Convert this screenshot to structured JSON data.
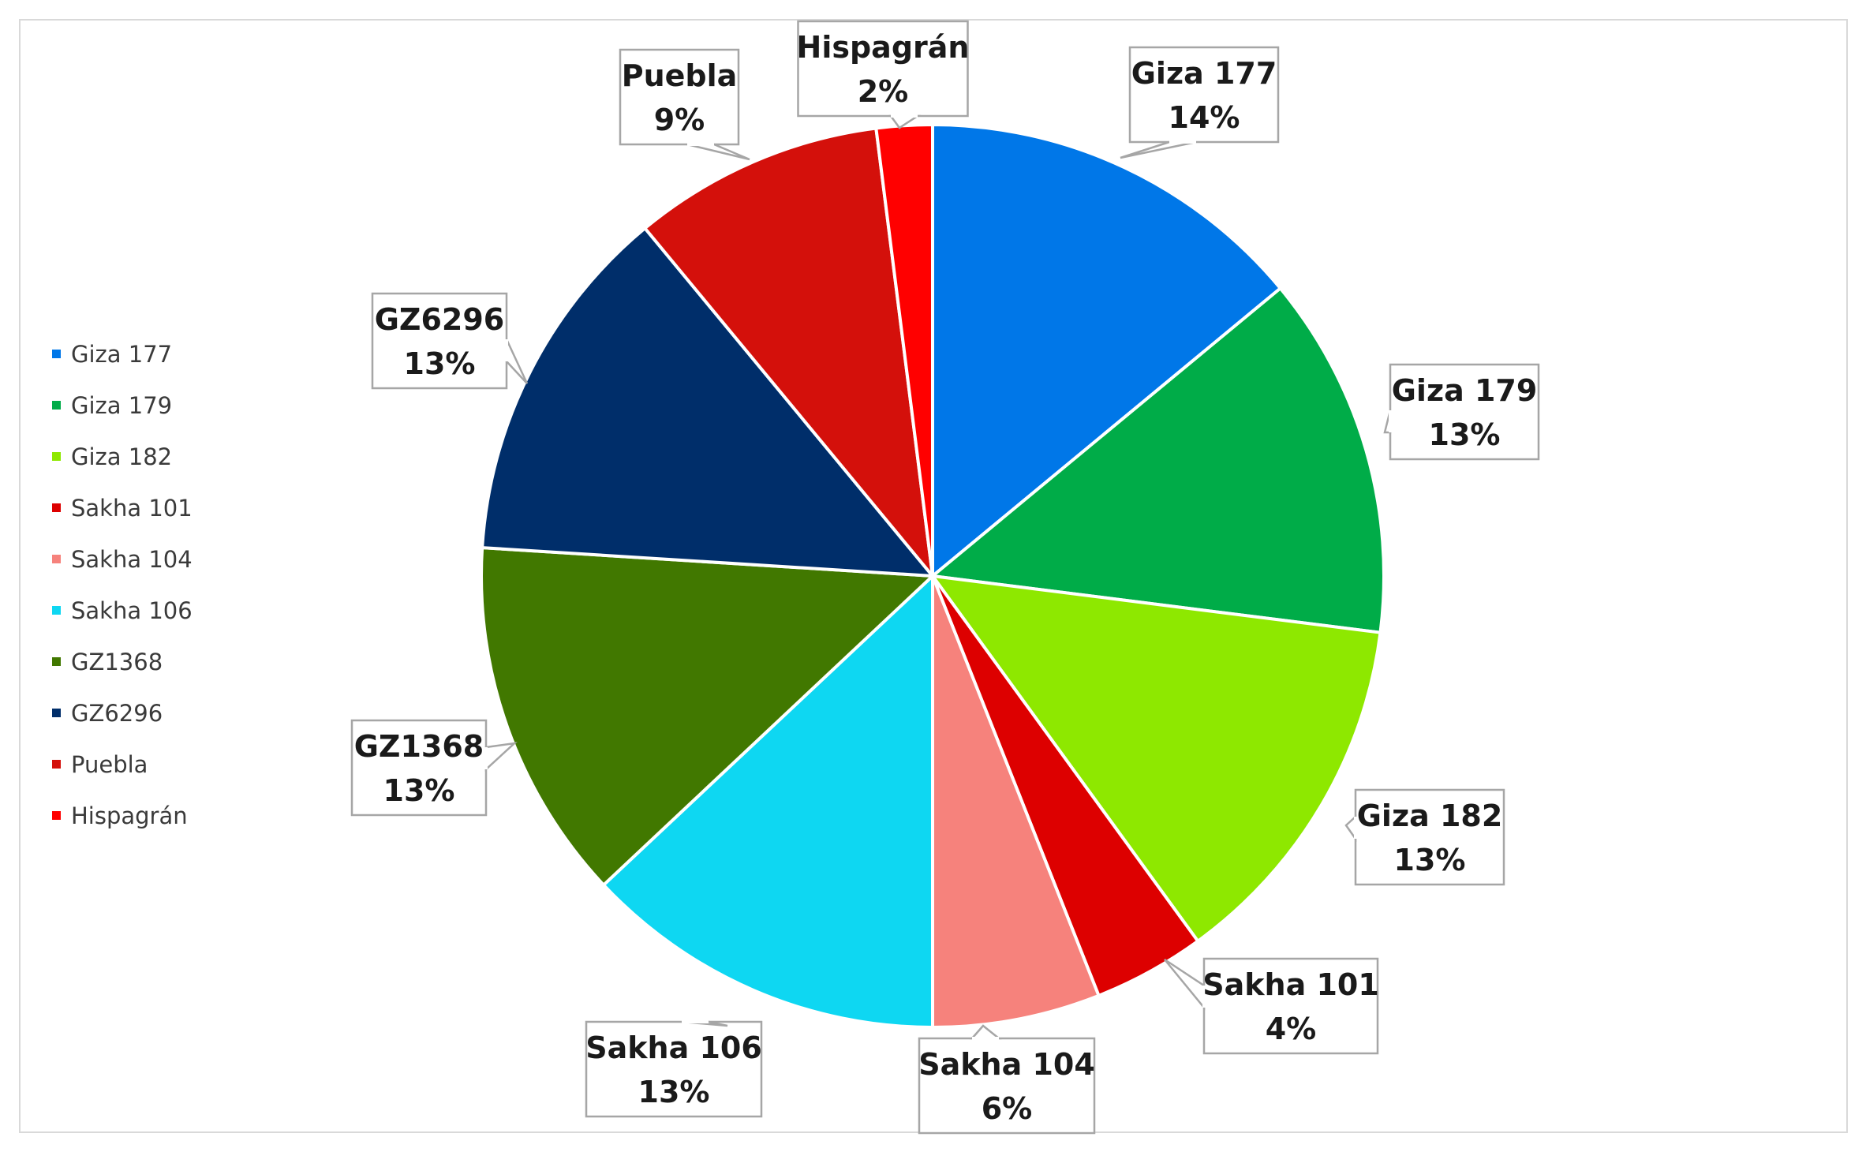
{
  "chart_data": {
    "type": "pie",
    "title": "",
    "slices": [
      {
        "name": "Giza 177",
        "value": 14,
        "label": "14%",
        "color": "#0077e8"
      },
      {
        "name": "Giza 179",
        "value": 13,
        "label": "13%",
        "color": "#00ac48"
      },
      {
        "name": "Giza 182",
        "value": 13,
        "label": "13%",
        "color": "#8ee800"
      },
      {
        "name": "Sakha 101",
        "value": 4,
        "label": "4%",
        "color": "#dd0000"
      },
      {
        "name": "Sakha 104",
        "value": 6,
        "label": "6%",
        "color": "#f6827c"
      },
      {
        "name": "Sakha 106",
        "value": 13,
        "label": "13%",
        "color": "#0ed7f2"
      },
      {
        "name": "GZ1368",
        "value": 13,
        "label": "13%",
        "color": "#417800"
      },
      {
        "name": "GZ6296",
        "value": 13,
        "label": "13%",
        "color": "#002e6a"
      },
      {
        "name": "Puebla",
        "value": 9,
        "label": "9%",
        "color": "#d4100b"
      },
      {
        "name": "Hispagrán",
        "value": 2,
        "label": "2%",
        "color": "#ff0000"
      }
    ],
    "legend": {
      "position": "left",
      "items": [
        "Giza 177",
        "Giza 179",
        "Giza 182",
        "Sakha 101",
        "Sakha 104",
        "Sakha 106",
        "GZ1368",
        "GZ6296",
        "Puebla",
        "Hispagrán"
      ]
    }
  }
}
